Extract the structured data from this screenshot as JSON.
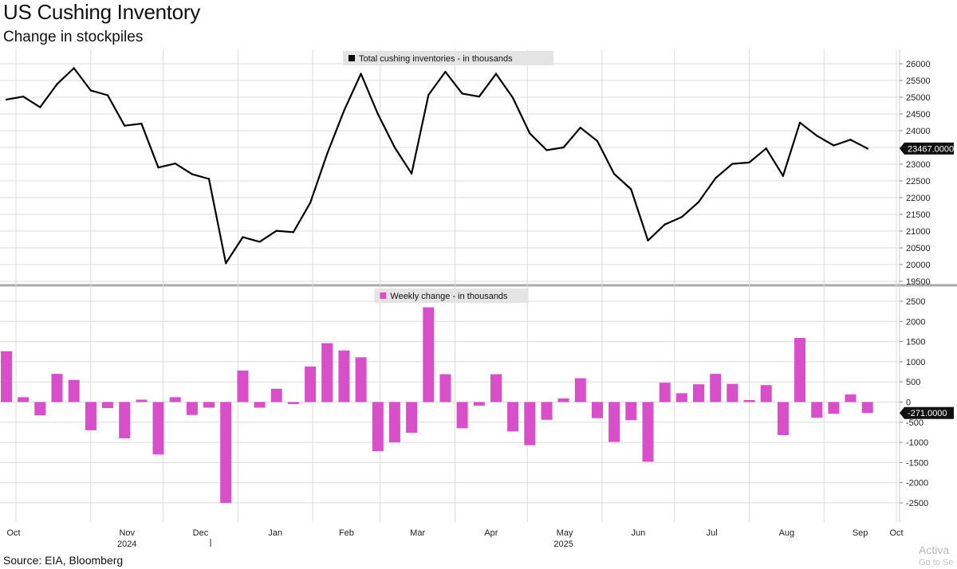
{
  "header": {
    "title": "US Cushing Inventory",
    "subtitle": "Change in stockpiles"
  },
  "footer": {
    "source": "Source: EIA, Bloomberg",
    "watermark_line1": "Activa",
    "watermark_line2": "Go to Se"
  },
  "x_axis": {
    "months": [
      {
        "label": "Oct",
        "x": "2024-10-01"
      },
      {
        "label": "Nov",
        "x": "2024-11-01"
      },
      {
        "label": "Dec",
        "x": "2024-12-01"
      },
      {
        "label": "Jan",
        "x": "2025-01-01"
      },
      {
        "label": "Feb",
        "x": "2025-02-01"
      },
      {
        "label": "Mar",
        "x": "2025-03-01"
      },
      {
        "label": "Apr",
        "x": "2025-04-01"
      },
      {
        "label": "May",
        "x": "2025-05-01"
      },
      {
        "label": "Jun",
        "x": "2025-06-01"
      },
      {
        "label": "Jul",
        "x": "2025-07-01"
      },
      {
        "label": "Aug",
        "x": "2025-08-01"
      },
      {
        "label": "Sep",
        "x": "2025-09-01"
      },
      {
        "label": "Oct",
        "x": "2025-10-01"
      }
    ],
    "years": [
      {
        "label": "2024",
        "x": "2024-11-01"
      },
      {
        "label": "2025",
        "x": "2025-05-01"
      }
    ]
  },
  "chart_data": [
    {
      "type": "line",
      "legend": "Total cushing inventories - in thousands",
      "color": "#000000",
      "last_value_label": "23467.0000",
      "ylim": [
        19500,
        26000
      ],
      "yticks": [
        19500,
        20000,
        20500,
        21000,
        21500,
        22000,
        22500,
        23000,
        23500,
        24000,
        24500,
        25000,
        25500,
        26000
      ],
      "grid": true,
      "legend_position": "top-center",
      "x": [
        "2024-09-27",
        "2024-10-04",
        "2024-10-11",
        "2024-10-18",
        "2024-10-25",
        "2024-11-01",
        "2024-11-08",
        "2024-11-15",
        "2024-11-22",
        "2024-11-29",
        "2024-12-06",
        "2024-12-13",
        "2024-12-20",
        "2024-12-27",
        "2025-01-03",
        "2025-01-10",
        "2025-01-17",
        "2025-01-24",
        "2025-01-31",
        "2025-02-07",
        "2025-02-14",
        "2025-02-21",
        "2025-02-28",
        "2025-03-07",
        "2025-03-14",
        "2025-03-21",
        "2025-03-28",
        "2025-04-04",
        "2025-04-11",
        "2025-04-18",
        "2025-04-25",
        "2025-05-02",
        "2025-05-09",
        "2025-05-16",
        "2025-05-23",
        "2025-05-30",
        "2025-06-06",
        "2025-06-13",
        "2025-06-20",
        "2025-06-27",
        "2025-07-04",
        "2025-07-11",
        "2025-07-18",
        "2025-07-25",
        "2025-08-01",
        "2025-08-08",
        "2025-08-15",
        "2025-08-22",
        "2025-08-29",
        "2025-09-05",
        "2025-09-12",
        "2025-09-19"
      ],
      "values": [
        24930,
        25020,
        24700,
        25390,
        25870,
        25200,
        25060,
        24150,
        24210,
        22900,
        23020,
        22700,
        22560,
        20040,
        20820,
        20680,
        21010,
        20970,
        21850,
        23310,
        24600,
        25700,
        24500,
        23500,
        22720,
        25070,
        25760,
        25110,
        25020,
        25700,
        24980,
        23920,
        23420,
        23500,
        24090,
        23690,
        22710,
        22250,
        20720,
        21200,
        21420,
        21870,
        22580,
        23010,
        23050,
        23470,
        22650,
        24240,
        23850,
        23560,
        23730,
        23467
      ]
    },
    {
      "type": "bar",
      "legend": "Weekly change - in thousands",
      "color": "#d94fc9",
      "last_value_label": "-271.0000",
      "ylim": [
        -2500,
        2500
      ],
      "yticks": [
        -2500,
        -2000,
        -1500,
        -1000,
        -500,
        0,
        500,
        1000,
        1500,
        2000,
        2500
      ],
      "grid": true,
      "legend_position": "top-center",
      "x": [
        "2024-09-27",
        "2024-10-04",
        "2024-10-11",
        "2024-10-18",
        "2024-10-25",
        "2024-11-01",
        "2024-11-08",
        "2024-11-15",
        "2024-11-22",
        "2024-11-29",
        "2024-12-06",
        "2024-12-13",
        "2024-12-20",
        "2024-12-27",
        "2025-01-03",
        "2025-01-10",
        "2025-01-17",
        "2025-01-24",
        "2025-01-31",
        "2025-02-07",
        "2025-02-14",
        "2025-02-21",
        "2025-02-28",
        "2025-03-07",
        "2025-03-14",
        "2025-03-21",
        "2025-03-28",
        "2025-04-04",
        "2025-04-11",
        "2025-04-18",
        "2025-04-25",
        "2025-05-02",
        "2025-05-09",
        "2025-05-16",
        "2025-05-23",
        "2025-05-30",
        "2025-06-06",
        "2025-06-13",
        "2025-06-20",
        "2025-06-27",
        "2025-07-04",
        "2025-07-11",
        "2025-07-18",
        "2025-07-25",
        "2025-08-01",
        "2025-08-08",
        "2025-08-15",
        "2025-08-22",
        "2025-08-29",
        "2025-09-05",
        "2025-09-12",
        "2025-09-19"
      ],
      "values": [
        1260,
        120,
        -330,
        700,
        550,
        -700,
        -150,
        -900,
        60,
        -1300,
        120,
        -320,
        -140,
        -2500,
        780,
        -140,
        330,
        -50,
        880,
        1460,
        1280,
        1110,
        -1220,
        -1000,
        -760,
        2350,
        690,
        -650,
        -90,
        690,
        -730,
        -1070,
        -440,
        90,
        590,
        -400,
        -990,
        -450,
        -1480,
        480,
        220,
        440,
        700,
        450,
        50,
        420,
        -820,
        1590,
        -390,
        -290,
        190,
        -271
      ]
    }
  ]
}
